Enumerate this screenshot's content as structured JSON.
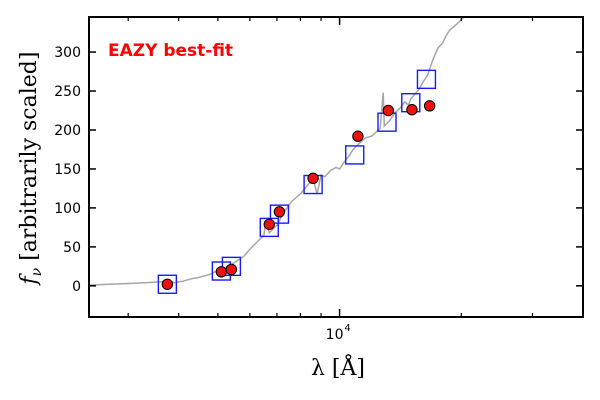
{
  "chart_data": {
    "type": "scatter",
    "annotation": {
      "text": "EAZY best-fit",
      "color": "#ff0000"
    },
    "xlabel": "λ [Å]",
    "ylabel": "f_ν [arbitrarily scaled]",
    "ylabel_parts": {
      "symbol": "f",
      "subscript": "ν",
      "rest": " [arbitrarily scaled]"
    },
    "x_scale": "log",
    "xlim": [
      2400,
      40000
    ],
    "ylim": [
      -40,
      345
    ],
    "y_ticks": [
      0,
      50,
      100,
      150,
      200,
      250,
      300
    ],
    "y_tick_labels": [
      "0",
      "50",
      "100",
      "150",
      "200",
      "250",
      "300"
    ],
    "x_major_ticks": [
      10000
    ],
    "x_tick_labels": [
      {
        "base": "10",
        "exp": "4"
      }
    ],
    "x_minor_ticks": [
      3000,
      4000,
      5000,
      6000,
      7000,
      8000,
      9000,
      20000,
      30000,
      40000
    ],
    "colors": {
      "sed": "#a6a6a6",
      "model": "#1a1aff",
      "observed": "#ee1111",
      "frame": "#000000"
    },
    "series": [
      {
        "role": "best-fit SED",
        "style": "line",
        "x": [
          2400,
          2700,
          3000,
          3300,
          3600,
          3700,
          3800,
          3900,
          4000,
          4100,
          4300,
          4500,
          4800,
          5000,
          5200,
          5500,
          5800,
          6000,
          6300,
          6500,
          6562,
          6700,
          7000,
          7300,
          7600,
          8000,
          8300,
          8600,
          8800,
          9000,
          9200,
          9500,
          9800,
          10000,
          10300,
          10600,
          10800,
          11200,
          11600,
          12000,
          12300,
          12600,
          12818,
          12900,
          13300,
          13700,
          14100,
          14500,
          14800,
          15000,
          15300,
          15700,
          16100,
          16500,
          17000,
          17500,
          18000,
          18300,
          18700,
          19200,
          19700,
          20300
        ],
        "y": [
          1,
          2,
          3,
          4,
          5,
          6,
          7,
          4,
          5,
          6,
          9,
          11,
          15,
          20,
          23,
          30,
          38,
          47,
          58,
          65,
          82,
          68,
          78,
          95,
          108,
          118,
          128,
          138,
          118,
          142,
          140,
          148,
          152,
          150,
          160,
          168,
          175,
          183,
          190,
          192,
          197,
          202,
          248,
          205,
          212,
          222,
          228,
          236,
          232,
          240,
          245,
          252,
          262,
          270,
          290,
          305,
          312,
          320,
          328,
          333,
          338,
          345
        ]
      },
      {
        "role": "model photometry",
        "style": "open-square",
        "x": [
          3750,
          5100,
          5400,
          6700,
          7100,
          8600,
          10900,
          13100,
          15000,
          16400
        ],
        "y": [
          2,
          19,
          25,
          75,
          92,
          130,
          168,
          210,
          235,
          265
        ]
      },
      {
        "role": "observed photometry",
        "style": "filled-circle",
        "x": [
          3750,
          5100,
          5400,
          6700,
          7100,
          8600,
          11100,
          13200,
          15100,
          16700
        ],
        "y": [
          2,
          18,
          21,
          79,
          95,
          138,
          192,
          225,
          226,
          231
        ]
      }
    ]
  }
}
